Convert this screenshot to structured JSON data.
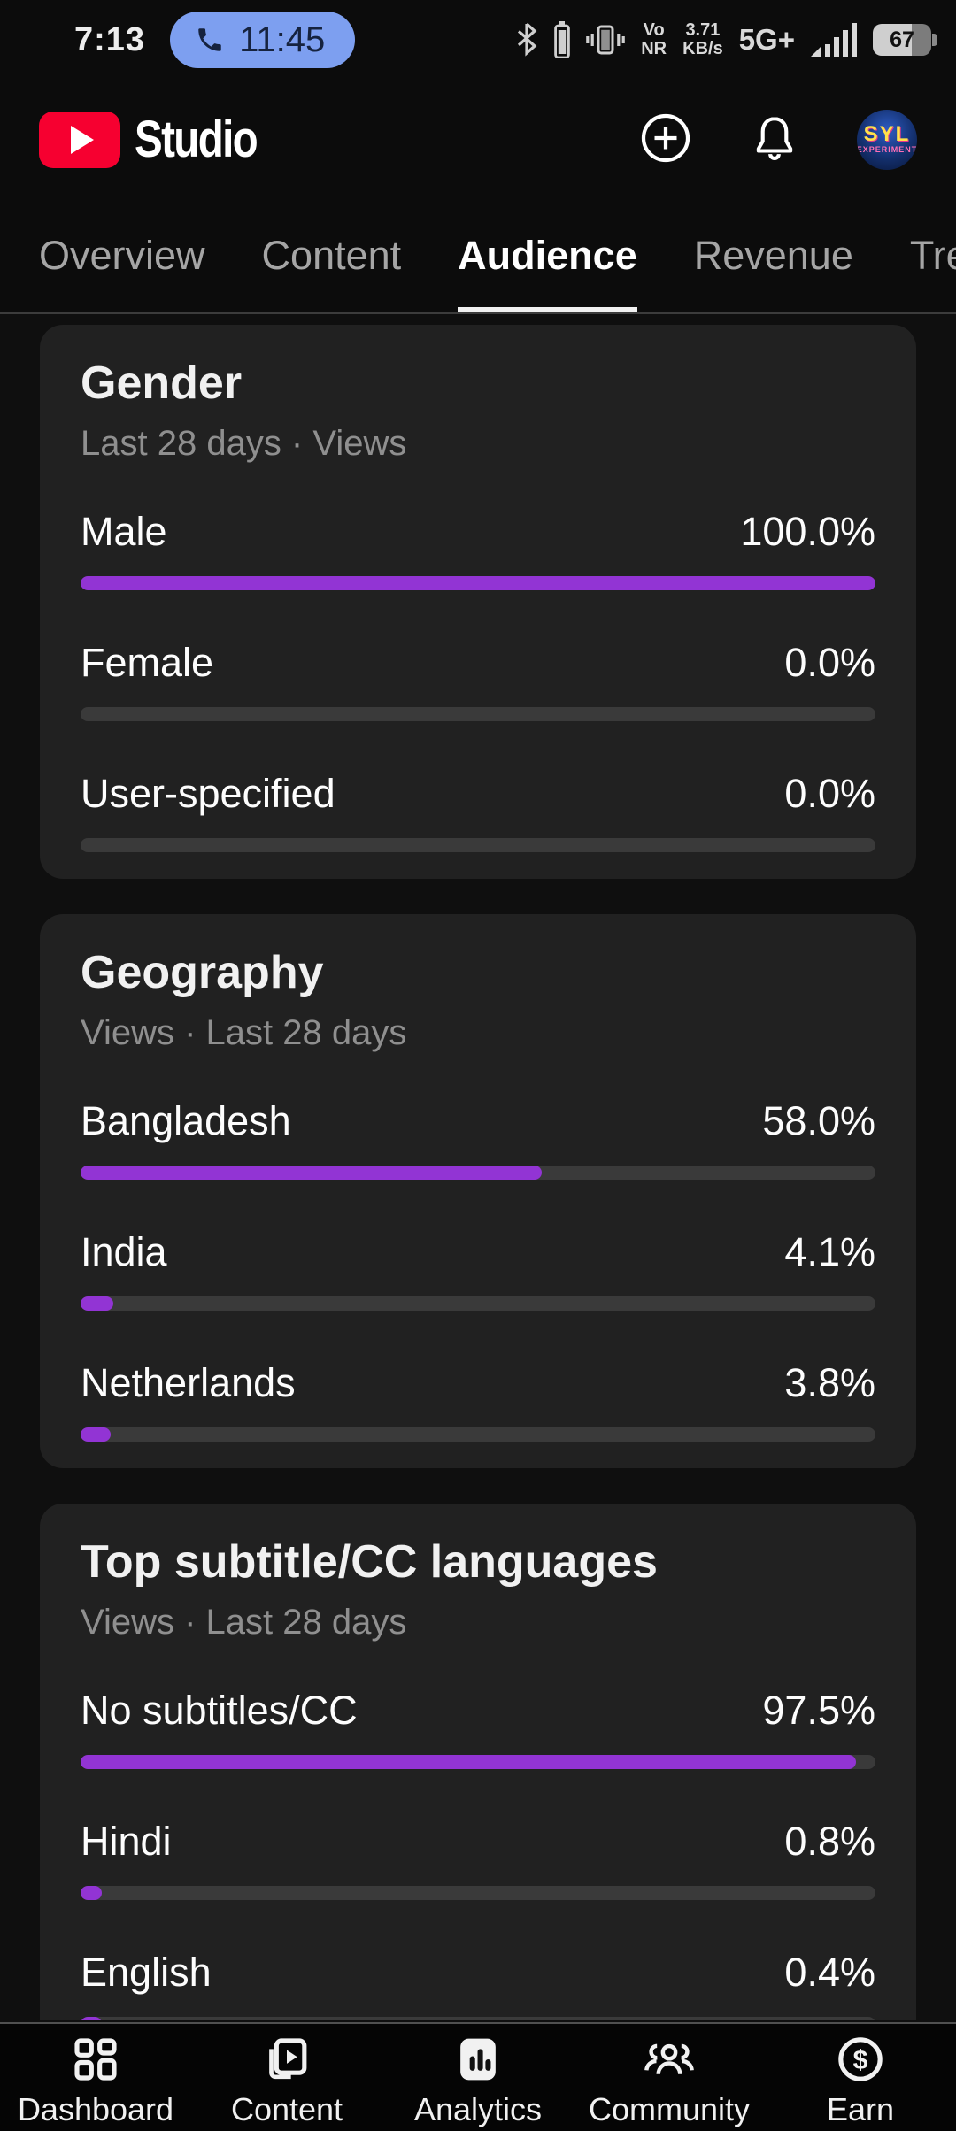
{
  "colors": {
    "accent": "#9234d4",
    "bar_track": "#3a3a3a",
    "card_bg": "#212121",
    "call_pill": "#7d9ff0",
    "brand_red": "#f60030"
  },
  "status_bar": {
    "time": "7:13",
    "call_duration": "11:45",
    "vonr_line1": "Vo",
    "vonr_line2": "NR",
    "speed_line1": "3.71",
    "speed_line2": "KB/s",
    "network_type": "5G+",
    "battery_level": "67"
  },
  "header": {
    "app_name": "Studio",
    "avatar_line1": "SYL",
    "avatar_line2": "EXPERIMENT"
  },
  "tabs": [
    {
      "label": "Overview"
    },
    {
      "label": "Content"
    },
    {
      "label": "Audience"
    },
    {
      "label": "Revenue"
    },
    {
      "label": "Trends"
    }
  ],
  "cards": [
    {
      "title": "Gender",
      "subtitle": "Last 28 days · Views",
      "rows": [
        {
          "label": "Male",
          "value": "100.0%",
          "pct": 100
        },
        {
          "label": "Female",
          "value": "0.0%",
          "pct": 0
        },
        {
          "label": "User-specified",
          "value": "0.0%",
          "pct": 0
        }
      ]
    },
    {
      "title": "Geography",
      "subtitle": "Views · Last 28 days",
      "rows": [
        {
          "label": "Bangladesh",
          "value": "58.0%",
          "pct": 58
        },
        {
          "label": "India",
          "value": "4.1%",
          "pct": 4.1
        },
        {
          "label": "Netherlands",
          "value": "3.8%",
          "pct": 3.8
        }
      ]
    },
    {
      "title": "Top subtitle/CC languages",
      "subtitle": "Views · Last 28 days",
      "rows": [
        {
          "label": "No subtitles/CC",
          "value": "97.5%",
          "pct": 97.5
        },
        {
          "label": "Hindi",
          "value": "0.8%",
          "pct": 0.8
        },
        {
          "label": "English",
          "value": "0.4%",
          "pct": 0.4
        }
      ]
    }
  ],
  "bottom_nav": [
    {
      "label": "Dashboard"
    },
    {
      "label": "Content"
    },
    {
      "label": "Analytics"
    },
    {
      "label": "Community"
    },
    {
      "label": "Earn"
    }
  ]
}
